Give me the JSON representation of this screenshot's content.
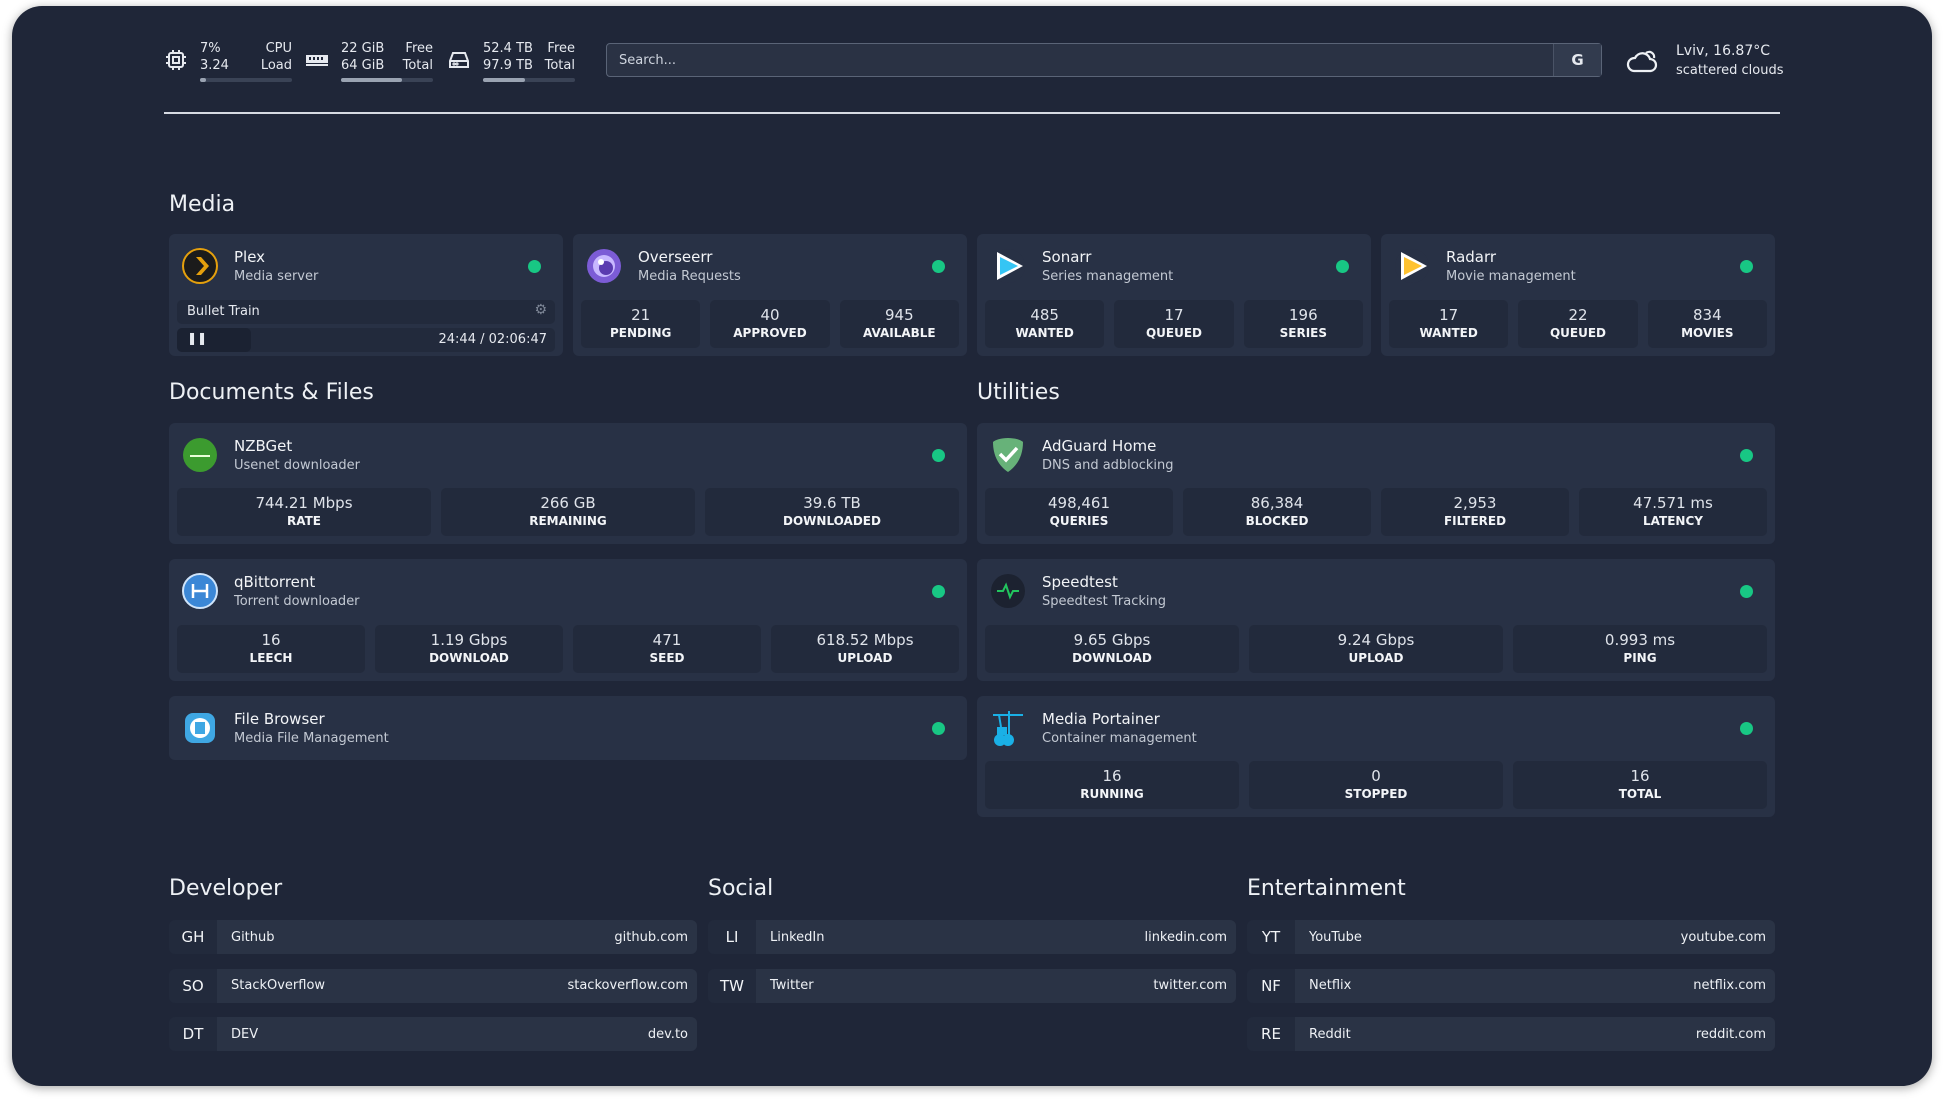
{
  "topbar": {
    "cpu": {
      "icon": "cpu-icon",
      "value1": "7%",
      "value2": "3.24",
      "label1": "CPU",
      "label2": "Load",
      "fill_percent": 7
    },
    "memory": {
      "icon": "memory-icon",
      "value1": "22 GiB",
      "value2": "64 GiB",
      "label1": "Free",
      "label2": "Total",
      "fill_percent": 66
    },
    "disk": {
      "icon": "disk-icon",
      "value1": "52.4 TB",
      "value2": "97.9 TB",
      "label1": "Free",
      "label2": "Total",
      "fill_percent": 46
    },
    "search": {
      "placeholder": "Search...",
      "button_label": "G"
    },
    "weather": {
      "icon": "cloud-icon",
      "location_temp": "Lviv, 16.87°C",
      "description": "scattered clouds"
    }
  },
  "colors": {
    "background": "#1f2638",
    "card": "#283145",
    "status_online": "#18c784"
  },
  "sections": {
    "media": {
      "title": "Media",
      "cards": [
        {
          "name": "Plex",
          "sub": "Media server",
          "icon": "plex",
          "now_playing": {
            "title": "Bullet Train",
            "time": "24:44 / 02:06:47",
            "progress_percent": 19.5
          }
        },
        {
          "name": "Overseerr",
          "sub": "Media Requests",
          "icon": "overseerr",
          "stats": [
            {
              "v": "21",
              "l": "PENDING"
            },
            {
              "v": "40",
              "l": "APPROVED"
            },
            {
              "v": "945",
              "l": "AVAILABLE"
            }
          ]
        },
        {
          "name": "Sonarr",
          "sub": "Series management",
          "icon": "sonarr",
          "stats": [
            {
              "v": "485",
              "l": "WANTED"
            },
            {
              "v": "17",
              "l": "QUEUED"
            },
            {
              "v": "196",
              "l": "SERIES"
            }
          ]
        },
        {
          "name": "Radarr",
          "sub": "Movie management",
          "icon": "radarr",
          "stats": [
            {
              "v": "17",
              "l": "WANTED"
            },
            {
              "v": "22",
              "l": "QUEUED"
            },
            {
              "v": "834",
              "l": "MOVIES"
            }
          ]
        }
      ]
    },
    "documents": {
      "title": "Documents & Files",
      "cards": [
        {
          "name": "NZBGet",
          "sub": "Usenet downloader",
          "icon": "nzbget",
          "stats": [
            {
              "v": "744.21 Mbps",
              "l": "RATE"
            },
            {
              "v": "266 GB",
              "l": "REMAINING"
            },
            {
              "v": "39.6 TB",
              "l": "DOWNLOADED"
            }
          ]
        },
        {
          "name": "qBittorrent",
          "sub": "Torrent downloader",
          "icon": "qbittorrent",
          "stats": [
            {
              "v": "16",
              "l": "LEECH"
            },
            {
              "v": "1.19 Gbps",
              "l": "DOWNLOAD"
            },
            {
              "v": "471",
              "l": "SEED"
            },
            {
              "v": "618.52 Mbps",
              "l": "UPLOAD"
            }
          ]
        },
        {
          "name": "File Browser",
          "sub": "Media File Management",
          "icon": "filebrowser"
        }
      ]
    },
    "utilities": {
      "title": "Utilities",
      "cards": [
        {
          "name": "AdGuard Home",
          "sub": "DNS and adblocking",
          "icon": "adguard",
          "stats": [
            {
              "v": "498,461",
              "l": "QUERIES"
            },
            {
              "v": "86,384",
              "l": "BLOCKED"
            },
            {
              "v": "2,953",
              "l": "FILTERED"
            },
            {
              "v": "47.571 ms",
              "l": "LATENCY"
            }
          ]
        },
        {
          "name": "Speedtest",
          "sub": "Speedtest Tracking",
          "icon": "speedtest",
          "stats": [
            {
              "v": "9.65 Gbps",
              "l": "DOWNLOAD"
            },
            {
              "v": "9.24 Gbps",
              "l": "UPLOAD"
            },
            {
              "v": "0.993 ms",
              "l": "PING"
            }
          ]
        },
        {
          "name": "Media Portainer",
          "sub": "Container management",
          "icon": "portainer",
          "status": true,
          "stats": [
            {
              "v": "16",
              "l": "RUNNING"
            },
            {
              "v": "0",
              "l": "STOPPED"
            },
            {
              "v": "16",
              "l": "TOTAL"
            }
          ]
        }
      ]
    }
  },
  "bookmarks": [
    {
      "title": "Developer",
      "items": [
        {
          "abbr": "GH",
          "name": "Github",
          "url": "github.com"
        },
        {
          "abbr": "SO",
          "name": "StackOverflow",
          "url": "stackoverflow.com"
        },
        {
          "abbr": "DT",
          "name": "DEV",
          "url": "dev.to"
        }
      ]
    },
    {
      "title": "Social",
      "items": [
        {
          "abbr": "LI",
          "name": "LinkedIn",
          "url": "linkedin.com"
        },
        {
          "abbr": "TW",
          "name": "Twitter",
          "url": "twitter.com"
        }
      ]
    },
    {
      "title": "Entertainment",
      "items": [
        {
          "abbr": "YT",
          "name": "YouTube",
          "url": "youtube.com"
        },
        {
          "abbr": "NF",
          "name": "Netflix",
          "url": "netflix.com"
        },
        {
          "abbr": "RE",
          "name": "Reddit",
          "url": "reddit.com"
        }
      ]
    }
  ]
}
